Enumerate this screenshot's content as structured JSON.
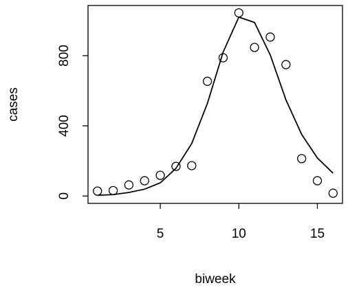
{
  "chart_data": {
    "type": "scatter",
    "x_label": "biweek",
    "y_label": "cases",
    "x": [
      1,
      2,
      3,
      4,
      5,
      6,
      7,
      8,
      9,
      10,
      11,
      12,
      13,
      14,
      15,
      16
    ],
    "series": [
      {
        "style": "points",
        "color": "#000000",
        "values": [
          28,
          31,
          63,
          87,
          118,
          169,
          173,
          654,
          788,
          1044,
          847,
          906,
          749,
          213,
          87,
          16
        ]
      },
      {
        "style": "line",
        "color": "#000000",
        "values": [
          4,
          8,
          20,
          39,
          75,
          158,
          299,
          528,
          820,
          1020,
          989,
          804,
          548,
          351,
          217,
          130
        ]
      }
    ],
    "xlim": [
      0.4,
      16.6
    ],
    "ylim": [
      -42,
      1086
    ],
    "xticks": [
      5,
      10,
      15
    ],
    "yticks": [
      0,
      400,
      800
    ]
  }
}
